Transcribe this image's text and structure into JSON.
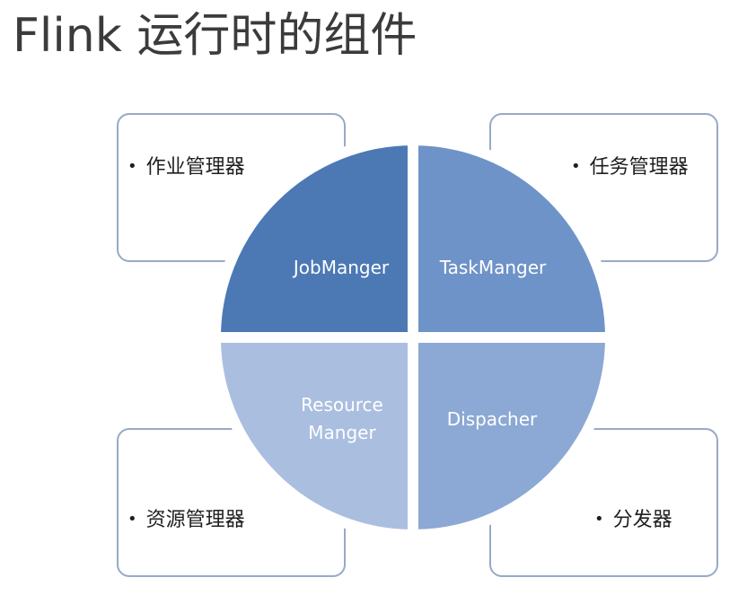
{
  "title": "Flink 运行时的组件",
  "quadrants": {
    "top_left": {
      "label": "JobManger",
      "color": "#4c79b4"
    },
    "top_right": {
      "label": "TaskManger",
      "color": "#6e93c8"
    },
    "bottom_left": {
      "line1": "Resource",
      "line2": "Manger",
      "color": "#aabedf"
    },
    "bottom_right": {
      "label": "Dispacher",
      "color": "#8ca8d4"
    }
  },
  "boxes": {
    "top_left": "作业管理器",
    "top_right": "任务管理器",
    "bottom_left": "资源管理器",
    "bottom_right": "分发器"
  },
  "bullet_char": "•"
}
